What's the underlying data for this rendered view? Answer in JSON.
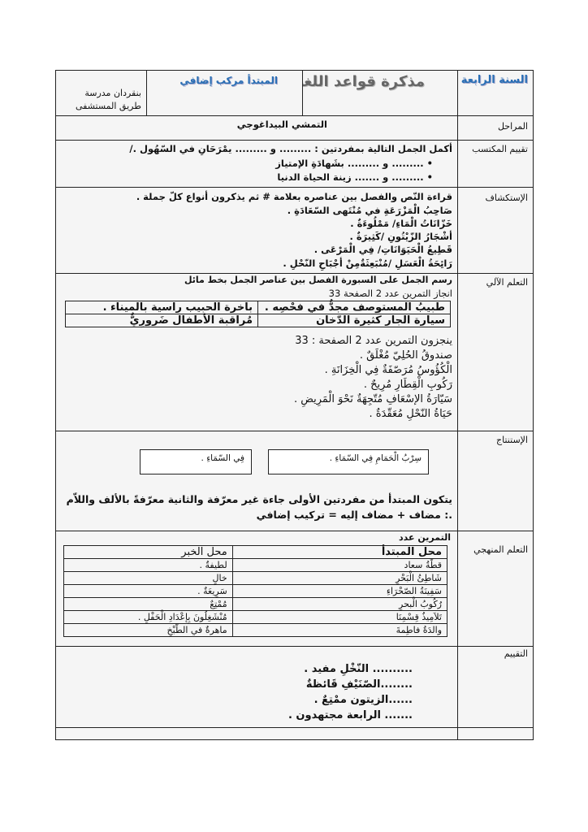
{
  "header": {
    "grade": "السنة الرابعة",
    "title": "مذكرة قواعد اللغة",
    "topic": "المبتدأ مركب إضافي",
    "school": "بنقردان مدرسة طريق المستشفى"
  },
  "rows": {
    "stages": {
      "label": "المراحل",
      "content": "التمشي البيداغوجي"
    },
    "assessment": {
      "label": "تقييم المكتسب",
      "intro": "أكمل الجمل التالية بمفردتين : ......... و ......... يمْرَحَانِ في السّهُول ./",
      "bullets": [
        "......... و ......... بشَهادَةِ الإمتياز",
        "......... و ....... زينة الحياة الدنيا"
      ]
    },
    "exploration": {
      "label": "الإستكشاف",
      "lines": [
        "قراءة النّص والفصل بين عناصره بعلامة # ثم يذكرون أنواع كلّ جملة .",
        "صَاحِبُ الْمَزْرَعَةِ في مُنْتَهى السّعَادَةِ .",
        "خَزّانَاتُ الْمَاءِ/ مَمْلُوءَةٌ .",
        "أشْجَارُ الزّيْتُونِ /كَثِيرَةٌ .",
        "قَطِيعُ الْحَيَوَانَاتِ/ فِي الْمَرْعَى .",
        "رَائِحَةُ الْعَسَلِ /مُنْبَعِثَةٌمِنْ أجْبَاحِ النّحْلِ ."
      ]
    },
    "learning": {
      "label": "التعلم الآلي",
      "line1": "رسم الجمل على السبورة الفصل بين عناصر الجمل بخط مائل",
      "line2": "انجاز التمرين عدد 2 الصفحة 33",
      "table": [
        [
          "طبيبُ المستوصف مجدٌّ في فحْصِه .",
          "باخرة الحبيب راسية بالميناء ."
        ],
        [
          "سيارة الجار كثيرة الدّخان",
          "مُراقبة الأطفال ضَرورِيٌّ"
        ]
      ],
      "line3": "ينجزون التمرين عدد 2 الصفحة : 33",
      "lines": [
        "صندوقُ الحُلِيّ مُغْلَقٌ .",
        "الْكُؤُوسُ مُرَصّفَةٌ فِي الْخِزَانَةِ .",
        "رَكُوبِ الْقِطَارِ مُرِيحٌ .",
        "سَيّارَةُ الإسْعَافِ مُتّجِهَةٌ نَحْوَ الْمَرِيضِ .",
        "حَيَاةُ النّحْلِ مُعَقّدَةٌ ."
      ]
    },
    "conclusion": {
      "label": "الإستنتاج",
      "box1": "سِرْبُ الْحَمَامِ فِي السّمَاءِ .",
      "box2": "فِي السّمَاءِ .",
      "rule": "يتكون المبتدأ من مفردتين الأولى جاءة غير معرّفة والثانية معرّفةً بالألف واللاّم .: مضاف + مضاف إليه = تركيب إضافي"
    },
    "systematic": {
      "label": "التعلم المنهجي",
      "caption": "التمرين عدد",
      "headers": [
        "محل المبتدأ",
        "محل الخبر"
      ],
      "table": [
        [
          "قطّةُ سعاد",
          "لطيفةٌ ."
        ],
        [
          "شَاطِئُ الْبَحْرِ",
          "خالٍ"
        ],
        [
          "سَفِينَةُ الصّحْرَاءِ",
          "سَرِيعَةٌ ."
        ],
        [
          "رُكُوبُ الْبحرِ",
          "مُمْتِعٌ"
        ],
        [
          "تَلاَمِيذُ قِسْمِنَا",
          "مُنْشَغِلُونَ بِإعْدَادِ الْحَفْلِ ."
        ],
        [
          "والدَةُ فاطِمةَ",
          "ماهرةٌ في الطّبْخِ"
        ]
      ]
    },
    "evaluation": {
      "label": "التقييم",
      "lines": [
        ".......... النّخْلِ مفيد .",
        "........الصّنَيْفِ قَائظةٌ",
        "......الزيتون ممْتِعٌ .",
        "....... الرابعة مجتهدون ."
      ]
    }
  }
}
